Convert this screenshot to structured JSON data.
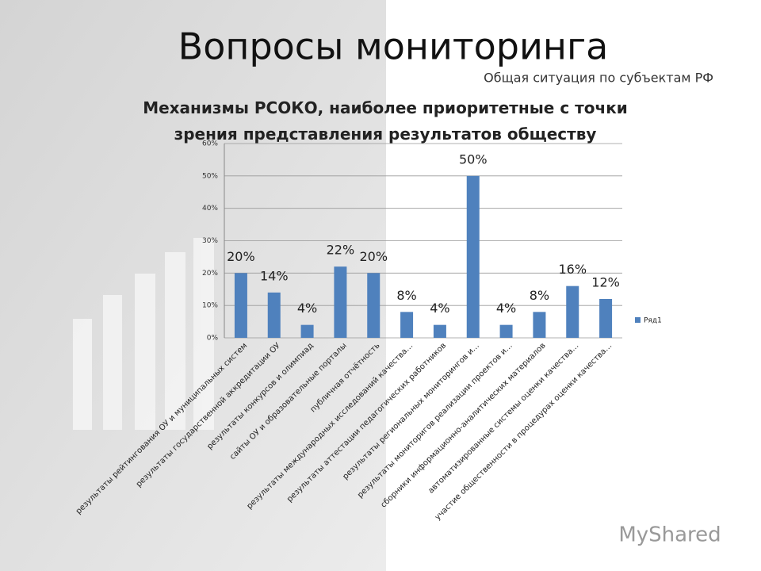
{
  "slide": {
    "title": "Вопросы мониторинга",
    "subtitle": "Общая ситуация по субъектам РФ",
    "watermark": "MyShared"
  },
  "chart_data": {
    "type": "bar",
    "title": "Механизмы РСОКО, наиболее приоритетные с точки зрения представления результатов обществу",
    "categories": [
      "результаты рейтингования ОУ и муниципальных систем",
      "результаты государственной аккредитации ОУ",
      "результаты конкурсов и олимпиад",
      "сайты ОУ и образовательные порталы",
      "публичная отчётность",
      "результаты международных исследований качества…",
      "результаты аттестации педагогических работников",
      "результаты региональных мониторингов и…",
      "результаты мониторигов реализации проектов и…",
      "сборники информационно-аналитических материалов",
      "автоматизированные системы оценки качества…",
      "участие общественности в процедурах оценки качества…"
    ],
    "series": [
      {
        "name": "Ряд1",
        "color": "#4f81bd",
        "values": [
          20,
          14,
          4,
          22,
          20,
          8,
          4,
          50,
          4,
          8,
          16,
          12
        ],
        "value_labels": [
          "20%",
          "14%",
          "4%",
          "22%",
          "20%",
          "8%",
          "4%",
          "50%",
          "4%",
          "8%",
          "16%",
          "12%"
        ]
      }
    ],
    "ylim": [
      0,
      60
    ],
    "yticks": [
      {
        "value": 0,
        "label": "0%"
      },
      {
        "value": 10,
        "label": "10%"
      },
      {
        "value": 20,
        "label": "20%"
      },
      {
        "value": 30,
        "label": "30%"
      },
      {
        "value": 40,
        "label": "40%"
      },
      {
        "value": 50,
        "label": "50%"
      },
      {
        "value": 60,
        "label": "60%"
      }
    ],
    "grid": true,
    "legend": "right"
  }
}
